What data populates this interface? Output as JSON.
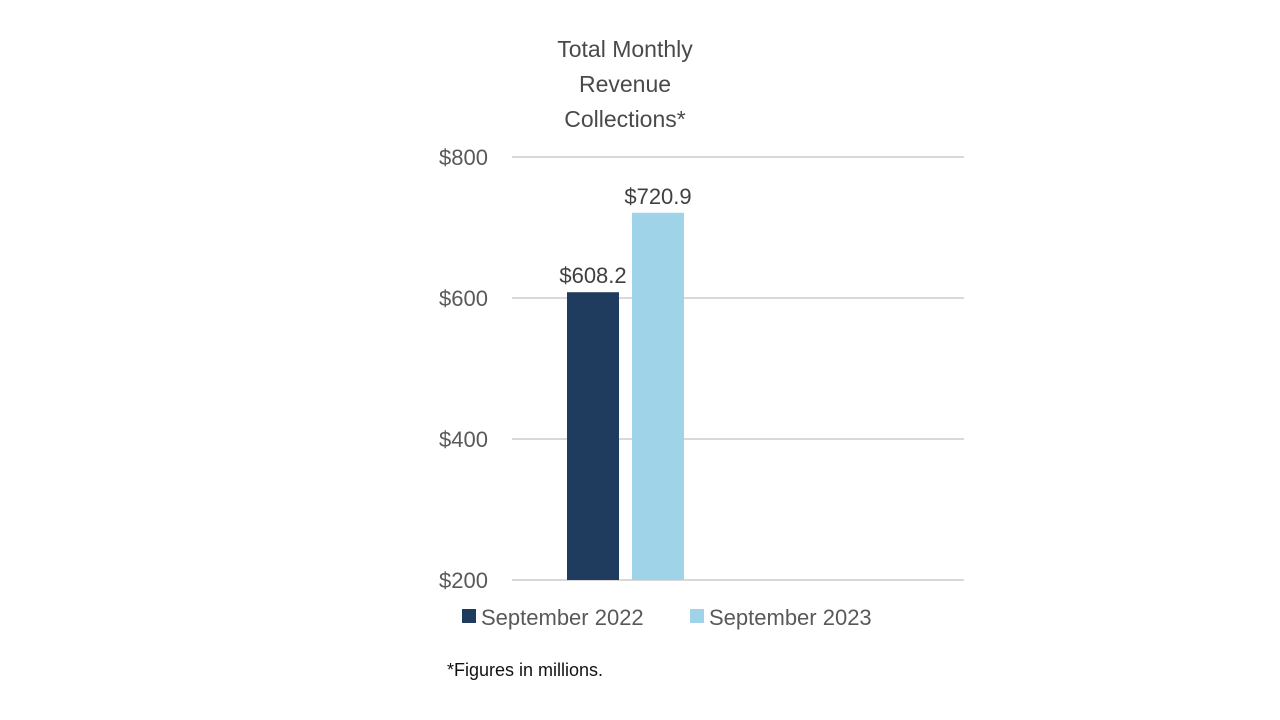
{
  "chart_data": {
    "type": "bar",
    "title_lines": [
      "Total Monthly",
      "Revenue",
      "Collections*"
    ],
    "categories": [
      "September 2022",
      "September 2023"
    ],
    "values": [
      608.2,
      720.9
    ],
    "data_labels": [
      "$608.2",
      "$720.9"
    ],
    "colors": [
      "#1f3b5e",
      "#9fd3e8"
    ],
    "ylim": [
      200,
      800
    ],
    "yticks": [
      200,
      400,
      600,
      800
    ],
    "ytick_labels": [
      "$200",
      "$400",
      "$600",
      "$800"
    ],
    "grid": true,
    "legend": {
      "placement": "bottom",
      "entries": [
        "September 2022",
        "September 2023"
      ]
    },
    "footnote": "*Figures in millions."
  }
}
